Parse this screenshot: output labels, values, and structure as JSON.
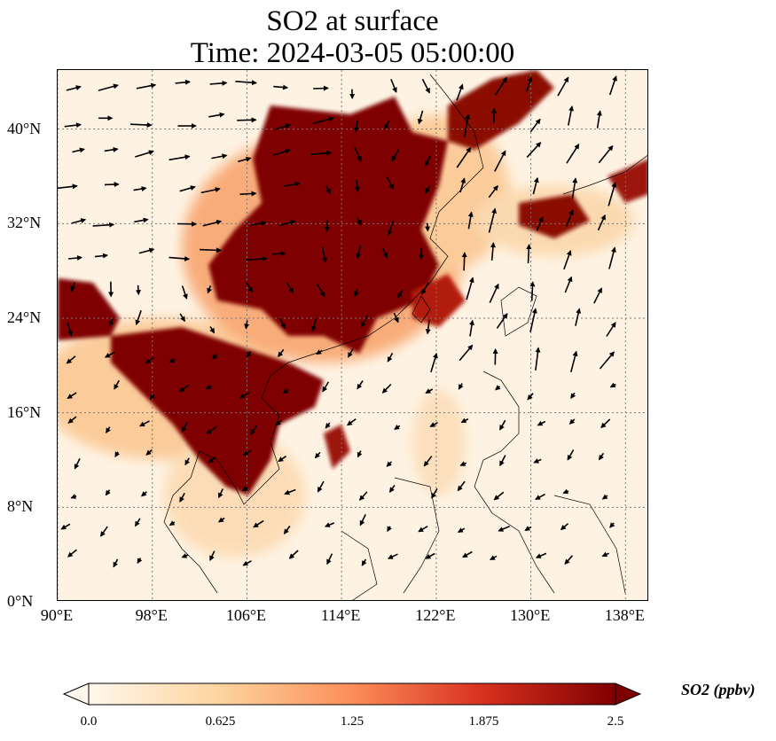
{
  "title": {
    "line1": "SO2 at surface",
    "line2": "Time: 2024-03-05 05:00:00"
  },
  "map": {
    "extent": {
      "lon": [
        90,
        140
      ],
      "lat": [
        0,
        45
      ]
    },
    "lat_ticks": [
      {
        "value": 0,
        "label": "0°N"
      },
      {
        "value": 8,
        "label": "8°N"
      },
      {
        "value": 16,
        "label": "16°N"
      },
      {
        "value": 24,
        "label": "24°N"
      },
      {
        "value": 32,
        "label": "32°N"
      },
      {
        "value": 40,
        "label": "40°N"
      }
    ],
    "lon_ticks": [
      {
        "value": 90,
        "label": "90°E"
      },
      {
        "value": 98,
        "label": "98°E"
      },
      {
        "value": 106,
        "label": "106°E"
      },
      {
        "value": 114,
        "label": "114°E"
      },
      {
        "value": 122,
        "label": "122°E"
      },
      {
        "value": 130,
        "label": "130°E"
      },
      {
        "value": 138,
        "label": "138°E"
      }
    ],
    "gridlines": true,
    "field": "SO2 concentration",
    "vectors": "wind"
  },
  "colorbar": {
    "label": "SO2 (ppbv)",
    "ticks": [
      "0.0",
      "0.625",
      "1.25",
      "1.875",
      "2.5"
    ],
    "range": [
      0,
      2.5
    ],
    "extend": "both",
    "colors": [
      "#fff7ec",
      "#fdd49e",
      "#fc8d59",
      "#d7301f",
      "#7f0000"
    ]
  }
}
